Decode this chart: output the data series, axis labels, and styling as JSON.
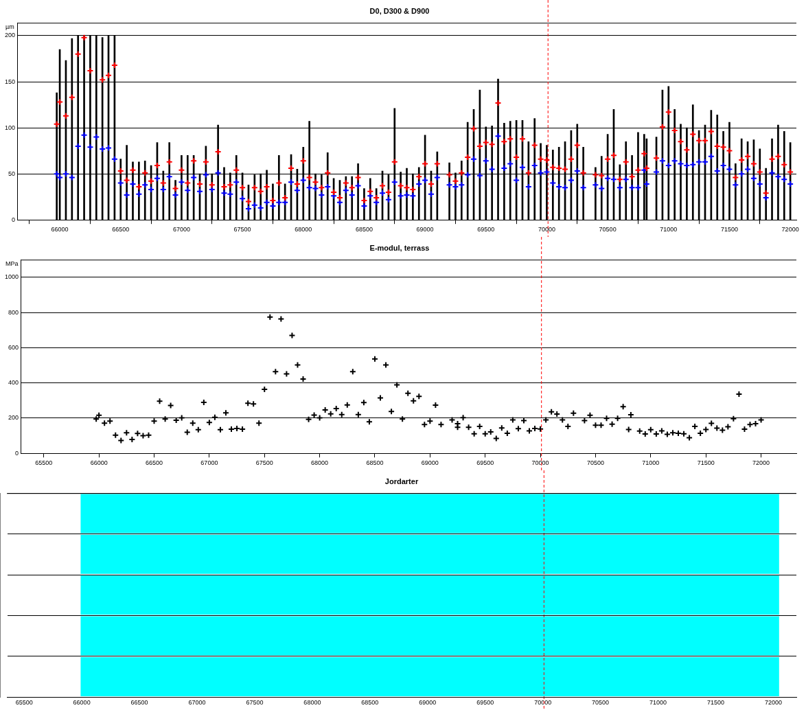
{
  "chart_data": [
    {
      "type": "bar",
      "title": "D0, D300 & D900",
      "ylabel": "µm",
      "xlim": [
        65650,
        72050
      ],
      "xticks": [
        66000,
        66500,
        67000,
        67500,
        68000,
        68500,
        69000,
        69500,
        70000,
        70500,
        71000,
        71500,
        72000
      ],
      "ylim": [
        0,
        214
      ],
      "yticks": [
        0,
        50,
        100,
        150,
        200
      ],
      "grid": "y",
      "marker": "cross",
      "x": [
        65975,
        66000,
        66050,
        66100,
        66150,
        66200,
        66250,
        66300,
        66350,
        66400,
        66450,
        66500,
        66550,
        66600,
        66650,
        66700,
        66750,
        66800,
        66850,
        66900,
        66950,
        67000,
        67050,
        67100,
        67150,
        67200,
        67250,
        67300,
        67350,
        67400,
        67450,
        67500,
        67550,
        67600,
        67650,
        67700,
        67750,
        67800,
        67850,
        67900,
        67950,
        68000,
        68050,
        68100,
        68150,
        68200,
        68250,
        68300,
        68350,
        68400,
        68450,
        68500,
        68550,
        68600,
        68650,
        68700,
        68750,
        68800,
        68850,
        68900,
        68950,
        69000,
        69050,
        69100,
        69200,
        69250,
        69300,
        69350,
        69400,
        69450,
        69500,
        69550,
        69600,
        69650,
        69700,
        69750,
        69800,
        69850,
        69900,
        69950,
        70000,
        70050,
        70100,
        70150,
        70200,
        70250,
        70300,
        70400,
        70450,
        70500,
        70550,
        70600,
        70650,
        70700,
        70750,
        70800,
        70820,
        70900,
        70950,
        71000,
        71050,
        71100,
        71150,
        71200,
        71250,
        71300,
        71350,
        71400,
        71450,
        71500,
        71550,
        71600,
        71650,
        71700,
        71750,
        71800,
        71850,
        71900,
        71950,
        72000
      ],
      "series": [
        {
          "type": "bar",
          "color": "#000000",
          "values": [
            138,
            185,
            173,
            197,
            200,
            200,
            200,
            200,
            198,
            200,
            200,
            66,
            81,
            63,
            63,
            64,
            59,
            84,
            53,
            84,
            43,
            70,
            70,
            70,
            50,
            80,
            50,
            103,
            57,
            51,
            70,
            51,
            38,
            49,
            50,
            54,
            39,
            70,
            39,
            71,
            55,
            79,
            107,
            50,
            49,
            73,
            45,
            43,
            47,
            47,
            61,
            34,
            45,
            34,
            53,
            49,
            121,
            52,
            56,
            50,
            57,
            92,
            53,
            74,
            62,
            51,
            64,
            106,
            120,
            141,
            101,
            102,
            153,
            105,
            107,
            108,
            108,
            85,
            110,
            83,
            81,
            76,
            79,
            85,
            97,
            104,
            79,
            57,
            69,
            93,
            120,
            60,
            85,
            70,
            95,
            93,
            88,
            90,
            141,
            145,
            120,
            104,
            100,
            125,
            97,
            103,
            119,
            114,
            96,
            106,
            61,
            88,
            85,
            87,
            77,
            56,
            88,
            103,
            96,
            84
          ]
        },
        {
          "type": "scatter",
          "color": "#ff0000",
          "values": [
            104,
            128,
            113,
            133,
            180,
            198,
            162,
            null,
            152,
            157,
            168,
            53,
            43,
            54,
            36,
            51,
            42,
            59,
            40,
            63,
            34,
            54,
            40,
            64,
            39,
            63,
            38,
            74,
            36,
            38,
            54,
            35,
            20,
            35,
            31,
            36,
            21,
            40,
            24,
            56,
            39,
            64,
            46,
            41,
            35,
            51,
            30,
            24,
            40,
            35,
            46,
            21,
            31,
            24,
            37,
            30,
            63,
            37,
            35,
            33,
            47,
            61,
            39,
            61,
            49,
            42,
            51,
            68,
            99,
            80,
            84,
            82,
            127,
            85,
            88,
            68,
            88,
            51,
            81,
            66,
            65,
            57,
            56,
            55,
            66,
            81,
            51,
            49,
            48,
            66,
            70,
            44,
            63,
            47,
            54,
            72,
            56,
            67,
            101,
            117,
            97,
            85,
            76,
            93,
            86,
            86,
            96,
            80,
            79,
            75,
            46,
            65,
            69,
            61,
            52,
            29,
            66,
            69,
            60,
            52
          ]
        },
        {
          "type": "scatter",
          "color": "#0000ff",
          "values": [
            50,
            46,
            50,
            46,
            80,
            92,
            79,
            90,
            77,
            78,
            66,
            40,
            27,
            39,
            28,
            38,
            33,
            45,
            33,
            47,
            27,
            41,
            32,
            46,
            31,
            49,
            33,
            51,
            29,
            28,
            41,
            23,
            12,
            16,
            13,
            19,
            15,
            19,
            19,
            41,
            32,
            43,
            35,
            34,
            27,
            36,
            26,
            19,
            32,
            27,
            37,
            15,
            26,
            19,
            29,
            22,
            41,
            26,
            27,
            26,
            39,
            43,
            28,
            46,
            38,
            36,
            38,
            49,
            66,
            48,
            64,
            55,
            91,
            56,
            61,
            43,
            57,
            36,
            59,
            51,
            52,
            40,
            36,
            35,
            43,
            53,
            35,
            38,
            34,
            45,
            44,
            35,
            44,
            35,
            35,
            54,
            39,
            52,
            64,
            59,
            64,
            61,
            59,
            60,
            63,
            63,
            69,
            53,
            59,
            55,
            38,
            50,
            55,
            45,
            39,
            24,
            51,
            47,
            44,
            39
          ]
        }
      ],
      "ref_lines": [
        {
          "axis": "x",
          "value": 70010,
          "color": "#ff0000",
          "line_style": "dashed"
        }
      ]
    },
    {
      "type": "scatter",
      "title": "E-modul, terrass",
      "ylabel": "MPa",
      "xlim": [
        65290,
        72320
      ],
      "xticks": [
        65500,
        66000,
        66500,
        67000,
        67500,
        68000,
        68500,
        69000,
        69500,
        70000,
        70500,
        71000,
        71500,
        72000
      ],
      "ylim": [
        0,
        1100
      ],
      "yticks": [
        0,
        200,
        400,
        600,
        800,
        1000
      ],
      "grid": "y",
      "marker": "cross",
      "color": "#000000",
      "x": [
        65975,
        66000,
        66050,
        66100,
        66150,
        66200,
        66250,
        66300,
        66350,
        66400,
        66450,
        66500,
        66550,
        66600,
        66650,
        66700,
        66750,
        66800,
        66850,
        66900,
        66950,
        67000,
        67050,
        67100,
        67150,
        67200,
        67250,
        67300,
        67350,
        67400,
        67450,
        67500,
        67550,
        67600,
        67650,
        67700,
        67750,
        67800,
        67850,
        67900,
        67950,
        68000,
        68050,
        68100,
        68150,
        68200,
        68250,
        68300,
        68350,
        68400,
        68450,
        68500,
        68550,
        68600,
        68650,
        68700,
        68750,
        68800,
        68850,
        68900,
        68950,
        69000,
        69050,
        69100,
        69200,
        69250,
        69250,
        69300,
        69350,
        69400,
        69450,
        69500,
        69550,
        69600,
        69650,
        69700,
        69750,
        69800,
        69850,
        69900,
        69950,
        70000,
        70050,
        70100,
        70150,
        70200,
        70250,
        70300,
        70400,
        70450,
        70500,
        70550,
        70600,
        70650,
        70700,
        70750,
        70800,
        70820,
        70900,
        70950,
        71000,
        71050,
        71100,
        71150,
        71200,
        71250,
        71300,
        71350,
        71400,
        71450,
        71500,
        71550,
        71600,
        71650,
        71700,
        71750,
        71800,
        71850,
        71900,
        71950,
        72000
      ],
      "values": [
        195,
        216,
        171,
        183,
        103,
        73,
        117,
        79,
        113,
        100,
        103,
        183,
        296,
        195,
        272,
        188,
        202,
        120,
        171,
        134,
        289,
        175,
        205,
        134,
        230,
        137,
        141,
        137,
        285,
        281,
        171,
        364,
        774,
        464,
        763,
        451,
        670,
        502,
        422,
        193,
        217,
        202,
        247,
        224,
        254,
        220,
        275,
        464,
        220,
        288,
        179,
        536,
        315,
        502,
        238,
        389,
        195,
        341,
        298,
        324,
        164,
        183,
        274,
        164,
        190,
        169,
        148,
        203,
        148,
        111,
        153,
        111,
        122,
        85,
        144,
        114,
        190,
        140,
        186,
        128,
        141,
        138,
        190,
        236,
        223,
        190,
        153,
        228,
        186,
        216,
        160,
        160,
        199,
        166,
        199,
        265,
        135,
        219,
        127,
        110,
        134,
        110,
        128,
        108,
        117,
        114,
        111,
        89,
        153,
        114,
        135,
        170,
        143,
        131,
        151,
        197,
        336,
        137,
        164,
        169,
        190
      ],
      "ref_lines": [
        {
          "axis": "x",
          "value": 70010,
          "color": "#ff0000",
          "line_style": "dashed"
        }
      ]
    },
    {
      "type": "bar",
      "orientation": "horizontal",
      "title": "Jordarter",
      "categories": [
        null,
        null,
        null,
        null,
        null
      ],
      "base": [
        65990,
        65990,
        65990,
        65990,
        65990
      ],
      "values": [
        6060,
        6060,
        6060,
        6060,
        6060
      ],
      "color": "#00ffff",
      "xlim": [
        65350,
        72200
      ],
      "xticks": [
        65500,
        66000,
        66500,
        67000,
        67500,
        68000,
        68500,
        69000,
        69500,
        70000,
        70500,
        71000,
        71500,
        72000
      ],
      "grid": "y",
      "tick_labels": "x",
      "ref_lines": [
        {
          "axis": "x",
          "value": 70010,
          "color": "#ff0000",
          "line_style": "dashed"
        }
      ]
    }
  ]
}
